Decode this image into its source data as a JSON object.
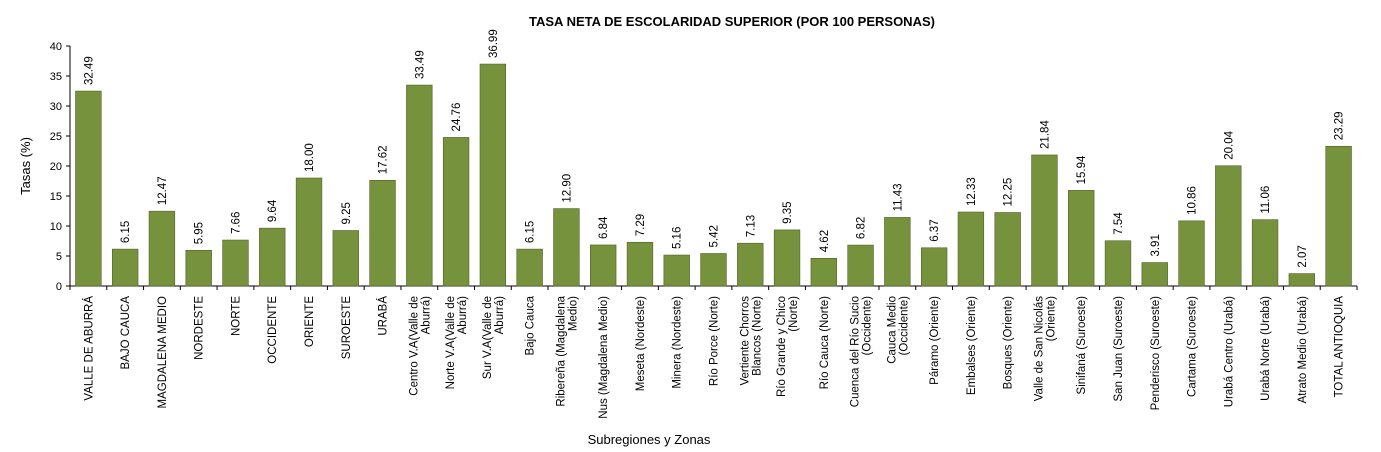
{
  "chart_data": {
    "type": "bar",
    "title": "TASA NETA DE ESCOLARIDAD SUPERIOR (POR 100 PERSONAS)",
    "xlabel": "Subregiones y Zonas",
    "ylabel": "Tasas (%)",
    "ylim": [
      0,
      40
    ],
    "yticks": [
      "0",
      "5",
      "10",
      "15",
      "20",
      "25",
      "30",
      "35",
      "40"
    ],
    "grid": false,
    "legend": "none",
    "categories": [
      [
        "VALLE DE ABURRÁ"
      ],
      [
        "BAJO CAUCA"
      ],
      [
        "MAGDALENA MEDIO"
      ],
      [
        "NORDESTE"
      ],
      [
        "NORTE"
      ],
      [
        "OCCIDENTE"
      ],
      [
        "ORIENTE"
      ],
      [
        "SUROESTE"
      ],
      [
        "URABÁ"
      ],
      [
        "Centro V.A(Valle de",
        "Aburrá)"
      ],
      [
        "Norte V.A(Valle de",
        "Aburrá)"
      ],
      [
        "Sur  V.A(Valle de",
        "Aburrá)"
      ],
      [
        "Bajo Cauca"
      ],
      [
        "Ribereña  (Magdalena",
        "Medio)"
      ],
      [
        "Nus  (Magdalena Medio)"
      ],
      [
        "Meseta  (Nordeste)"
      ],
      [
        "Minera  (Nordeste)"
      ],
      [
        "Río Porce   (Norte)"
      ],
      [
        "Vertiente Chorros",
        "Blancos (Norte)"
      ],
      [
        "Río Grande y Chico",
        "(Norte)"
      ],
      [
        "Río Cauca  (Norte)"
      ],
      [
        "Cuenca del Río Sucio",
        "(Occidente)"
      ],
      [
        "Cauca Medio",
        "(Occidente)"
      ],
      [
        "Páramo  (Oriente)"
      ],
      [
        "Embalses  (Oriente)"
      ],
      [
        "Bosques  (Oriente)"
      ],
      [
        "Valle de San Nicolás",
        "(Oriente)"
      ],
      [
        "Sinifaná  (Suroeste)"
      ],
      [
        "San Juan  (Suroeste)"
      ],
      [
        "Penderisco  (Suroeste)"
      ],
      [
        "Cartama  (Suroeste)"
      ],
      [
        "Urabá Centro  (Urabá)"
      ],
      [
        "Urabá Norte  (Urabá)"
      ],
      [
        "Atrato Medio  (Urabá)"
      ],
      [
        "TOTAL ANTIOQUIA"
      ]
    ],
    "values": [
      32.49,
      6.15,
      12.47,
      5.95,
      7.66,
      9.64,
      18.0,
      9.25,
      17.62,
      33.49,
      24.76,
      36.99,
      6.15,
      12.9,
      6.84,
      7.29,
      5.16,
      5.42,
      7.13,
      9.35,
      4.62,
      6.82,
      11.43,
      6.37,
      12.33,
      12.25,
      21.84,
      15.94,
      7.54,
      3.91,
      10.86,
      20.04,
      11.06,
      2.07,
      23.29
    ],
    "value_labels": [
      "32.49",
      "6.15",
      "12.47",
      "5.95",
      "7.66",
      "9.64",
      "18.00",
      "9.25",
      "17.62",
      "33.49",
      "24.76",
      "36.99",
      "6.15",
      "12.90",
      "6.84",
      "7.29",
      "5.16",
      "5.42",
      "7.13",
      "9.35",
      "4.62",
      "6.82",
      "11.43",
      "6.37",
      "12.33",
      "12.25",
      "21.84",
      "15.94",
      "7.54",
      "3.91",
      "10.86",
      "20.04",
      "11.06",
      "2.07",
      "23.29"
    ],
    "colors": {
      "bar": "#76923c",
      "bar_edge": "#4f6228",
      "title": "#4f6228",
      "axis": "#000000"
    }
  }
}
